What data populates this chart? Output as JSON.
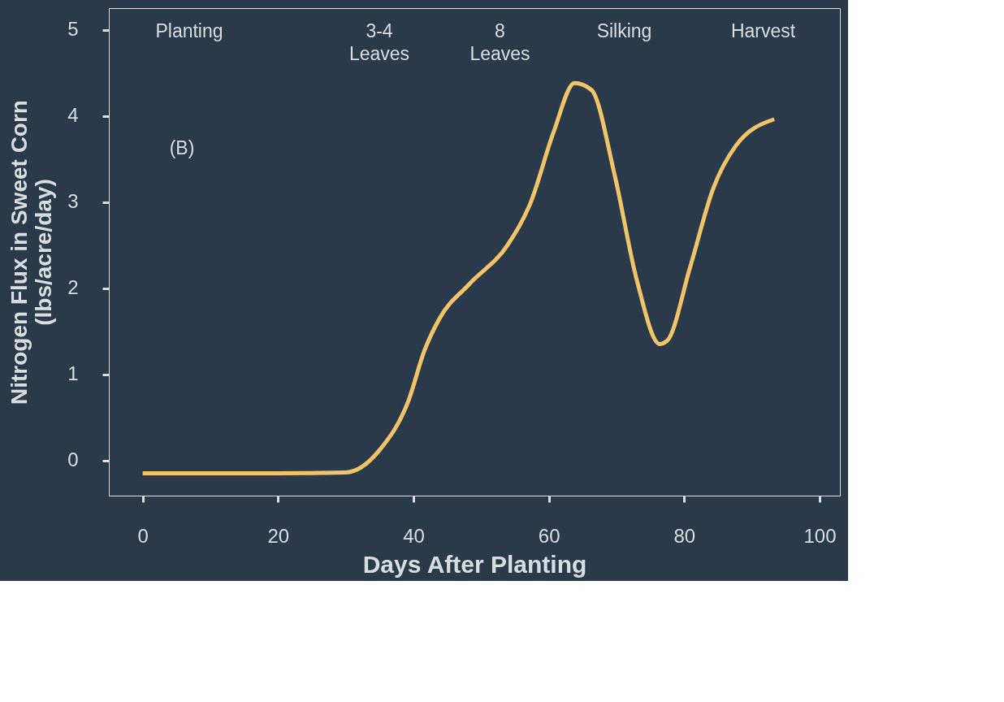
{
  "chart_data": {
    "type": "line",
    "xlabel": "Days After Planting",
    "ylabel": "Nitrogen Flux in Sweet Corn\n(lbs/acre/day)",
    "xlim": [
      -5,
      103
    ],
    "ylim": [
      -0.41,
      5.25
    ],
    "xticks": [
      0,
      20,
      40,
      60,
      80,
      100
    ],
    "yticks": [
      0,
      1,
      2,
      3,
      4,
      5
    ],
    "grid": false,
    "marker": "none",
    "line_style": "solid",
    "series": [
      {
        "color": "#f2c46a",
        "x": [
          0,
          10,
          20,
          30,
          35,
          39.3,
          41.6,
          43.8,
          48.3,
          53.9,
          57.3,
          60.7,
          63.8,
          66.3,
          69.7,
          73,
          76.4,
          77.5,
          80.9,
          84.3,
          87.6,
          93.3
        ],
        "values": [
          -0.15,
          -0.15,
          -0.15,
          -0.14,
          0.12,
          0.7,
          1.27,
          1.64,
          2.05,
          2.5,
          2.99,
          3.81,
          4.38,
          4.3,
          3.32,
          2.09,
          1.35,
          1.39,
          2.25,
          3.16,
          3.65,
          3.96
        ]
      }
    ],
    "annotations": [
      "Planting",
      "3-4\nLeaves",
      "8\nLeaves",
      "Silking",
      "Harvest",
      "(B)"
    ]
  }
}
